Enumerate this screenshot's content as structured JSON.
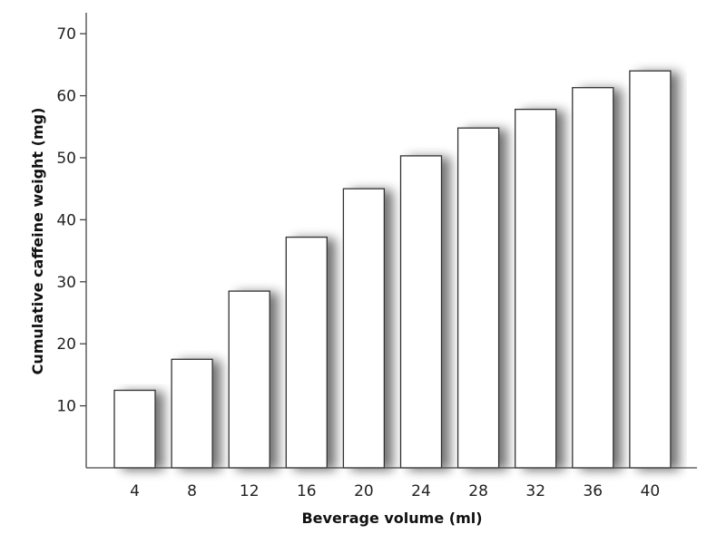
{
  "chart_data": {
    "type": "bar",
    "title": "",
    "xlabel": "Beverage volume (ml)",
    "ylabel": "Cumulative caffeine weight (mg)",
    "categories": [
      "4",
      "8",
      "12",
      "16",
      "20",
      "24",
      "28",
      "32",
      "36",
      "40"
    ],
    "values": [
      12.5,
      17.5,
      28.5,
      37.2,
      45,
      50.3,
      54.8,
      57.8,
      61.3,
      64
    ],
    "yticks": [
      "10",
      "20",
      "30",
      "40",
      "50",
      "60",
      "70"
    ],
    "ylim": [
      0,
      70
    ],
    "grid": false,
    "legend": "none",
    "colors": {
      "bar_fill": "#ffffff",
      "bar_stroke": "#333333",
      "shadow": "#999999"
    }
  }
}
